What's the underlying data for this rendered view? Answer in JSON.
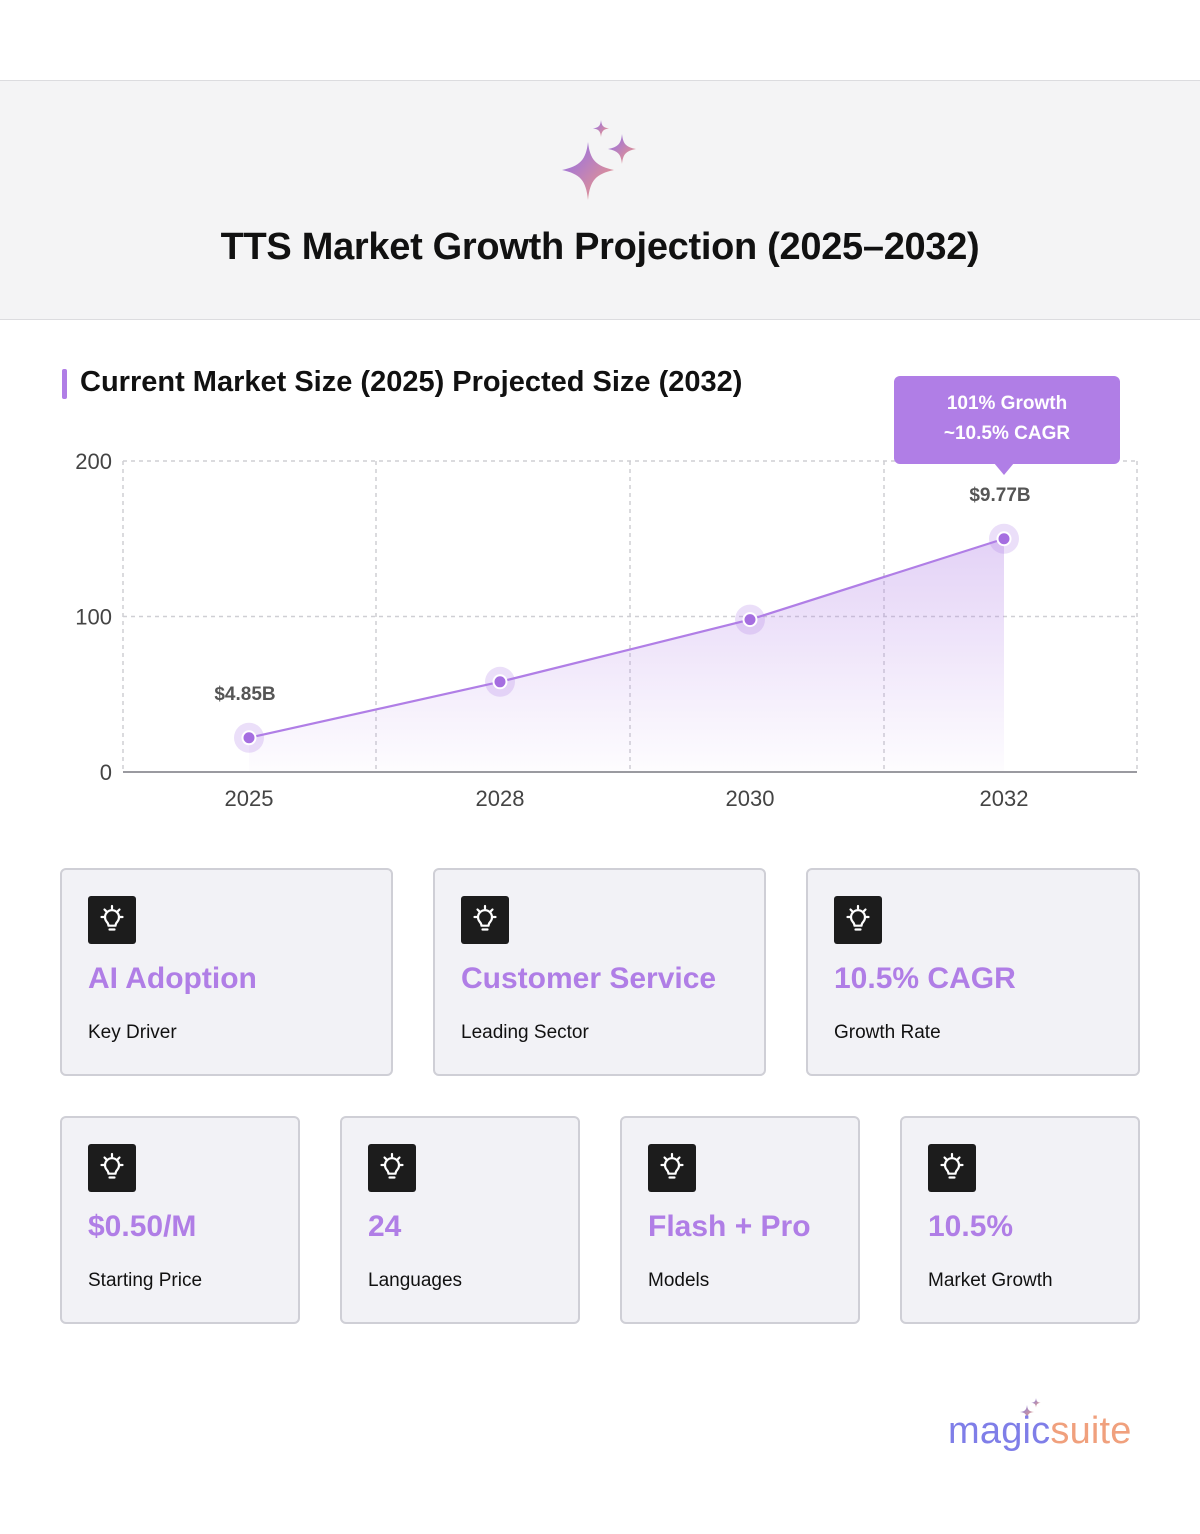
{
  "page": {
    "title": "TTS Market Growth Projection (2025–2032)"
  },
  "section": {
    "title": "Current Market Size (2025) Projected Size (2032)"
  },
  "chart_data": {
    "type": "area",
    "title": "Current Market Size (2025) Projected Size (2032)",
    "xlabel": "",
    "ylabel": "",
    "categories": [
      "2025",
      "2028",
      "2030",
      "2032"
    ],
    "series": [
      {
        "values": [
          22,
          58,
          98,
          150
        ]
      }
    ],
    "ylim": [
      0,
      200
    ],
    "yticks": [
      "0",
      "100",
      "200"
    ],
    "grid": true,
    "data_labels": [
      {
        "category": "2025",
        "text": "$4.85B"
      },
      {
        "category": "2032",
        "text": "$9.77B"
      }
    ],
    "callout": {
      "category": "2032",
      "line1": "101% Growth",
      "line2": "~10.5% CAGR"
    },
    "colors": {
      "line": "#b07ee6",
      "point": "#a56ee0",
      "callout_bg": "#b07ee6",
      "grid": "#cfcfd4",
      "label": "#555555"
    }
  },
  "cards_top": [
    {
      "icon": "lightbulb-icon",
      "value": "AI Adoption",
      "label": "Key Driver"
    },
    {
      "icon": "lightbulb-icon",
      "value": "Customer Service",
      "label": "Leading Sector"
    },
    {
      "icon": "lightbulb-icon",
      "value": "10.5% CAGR",
      "label": "Growth Rate"
    }
  ],
  "cards_bottom": [
    {
      "icon": "lightbulb-icon",
      "value": "$0.50/M",
      "label": "Starting Price"
    },
    {
      "icon": "lightbulb-icon",
      "value": "24",
      "label": "Languages"
    },
    {
      "icon": "lightbulb-icon",
      "value": "Flash + Pro",
      "label": "Models"
    },
    {
      "icon": "lightbulb-icon",
      "value": "10.5%",
      "label": "Market Growth"
    }
  ],
  "brand": {
    "part1": "magic",
    "part2": "suite",
    "colors": {
      "primary": "#7f7ee8",
      "secondary": "#f0a07d"
    }
  },
  "theme": {
    "accent": "#b07ee6",
    "card_bg": "#f2f2f6",
    "card_border": "#cfcfd6",
    "header_bg": "#f4f4f5"
  }
}
